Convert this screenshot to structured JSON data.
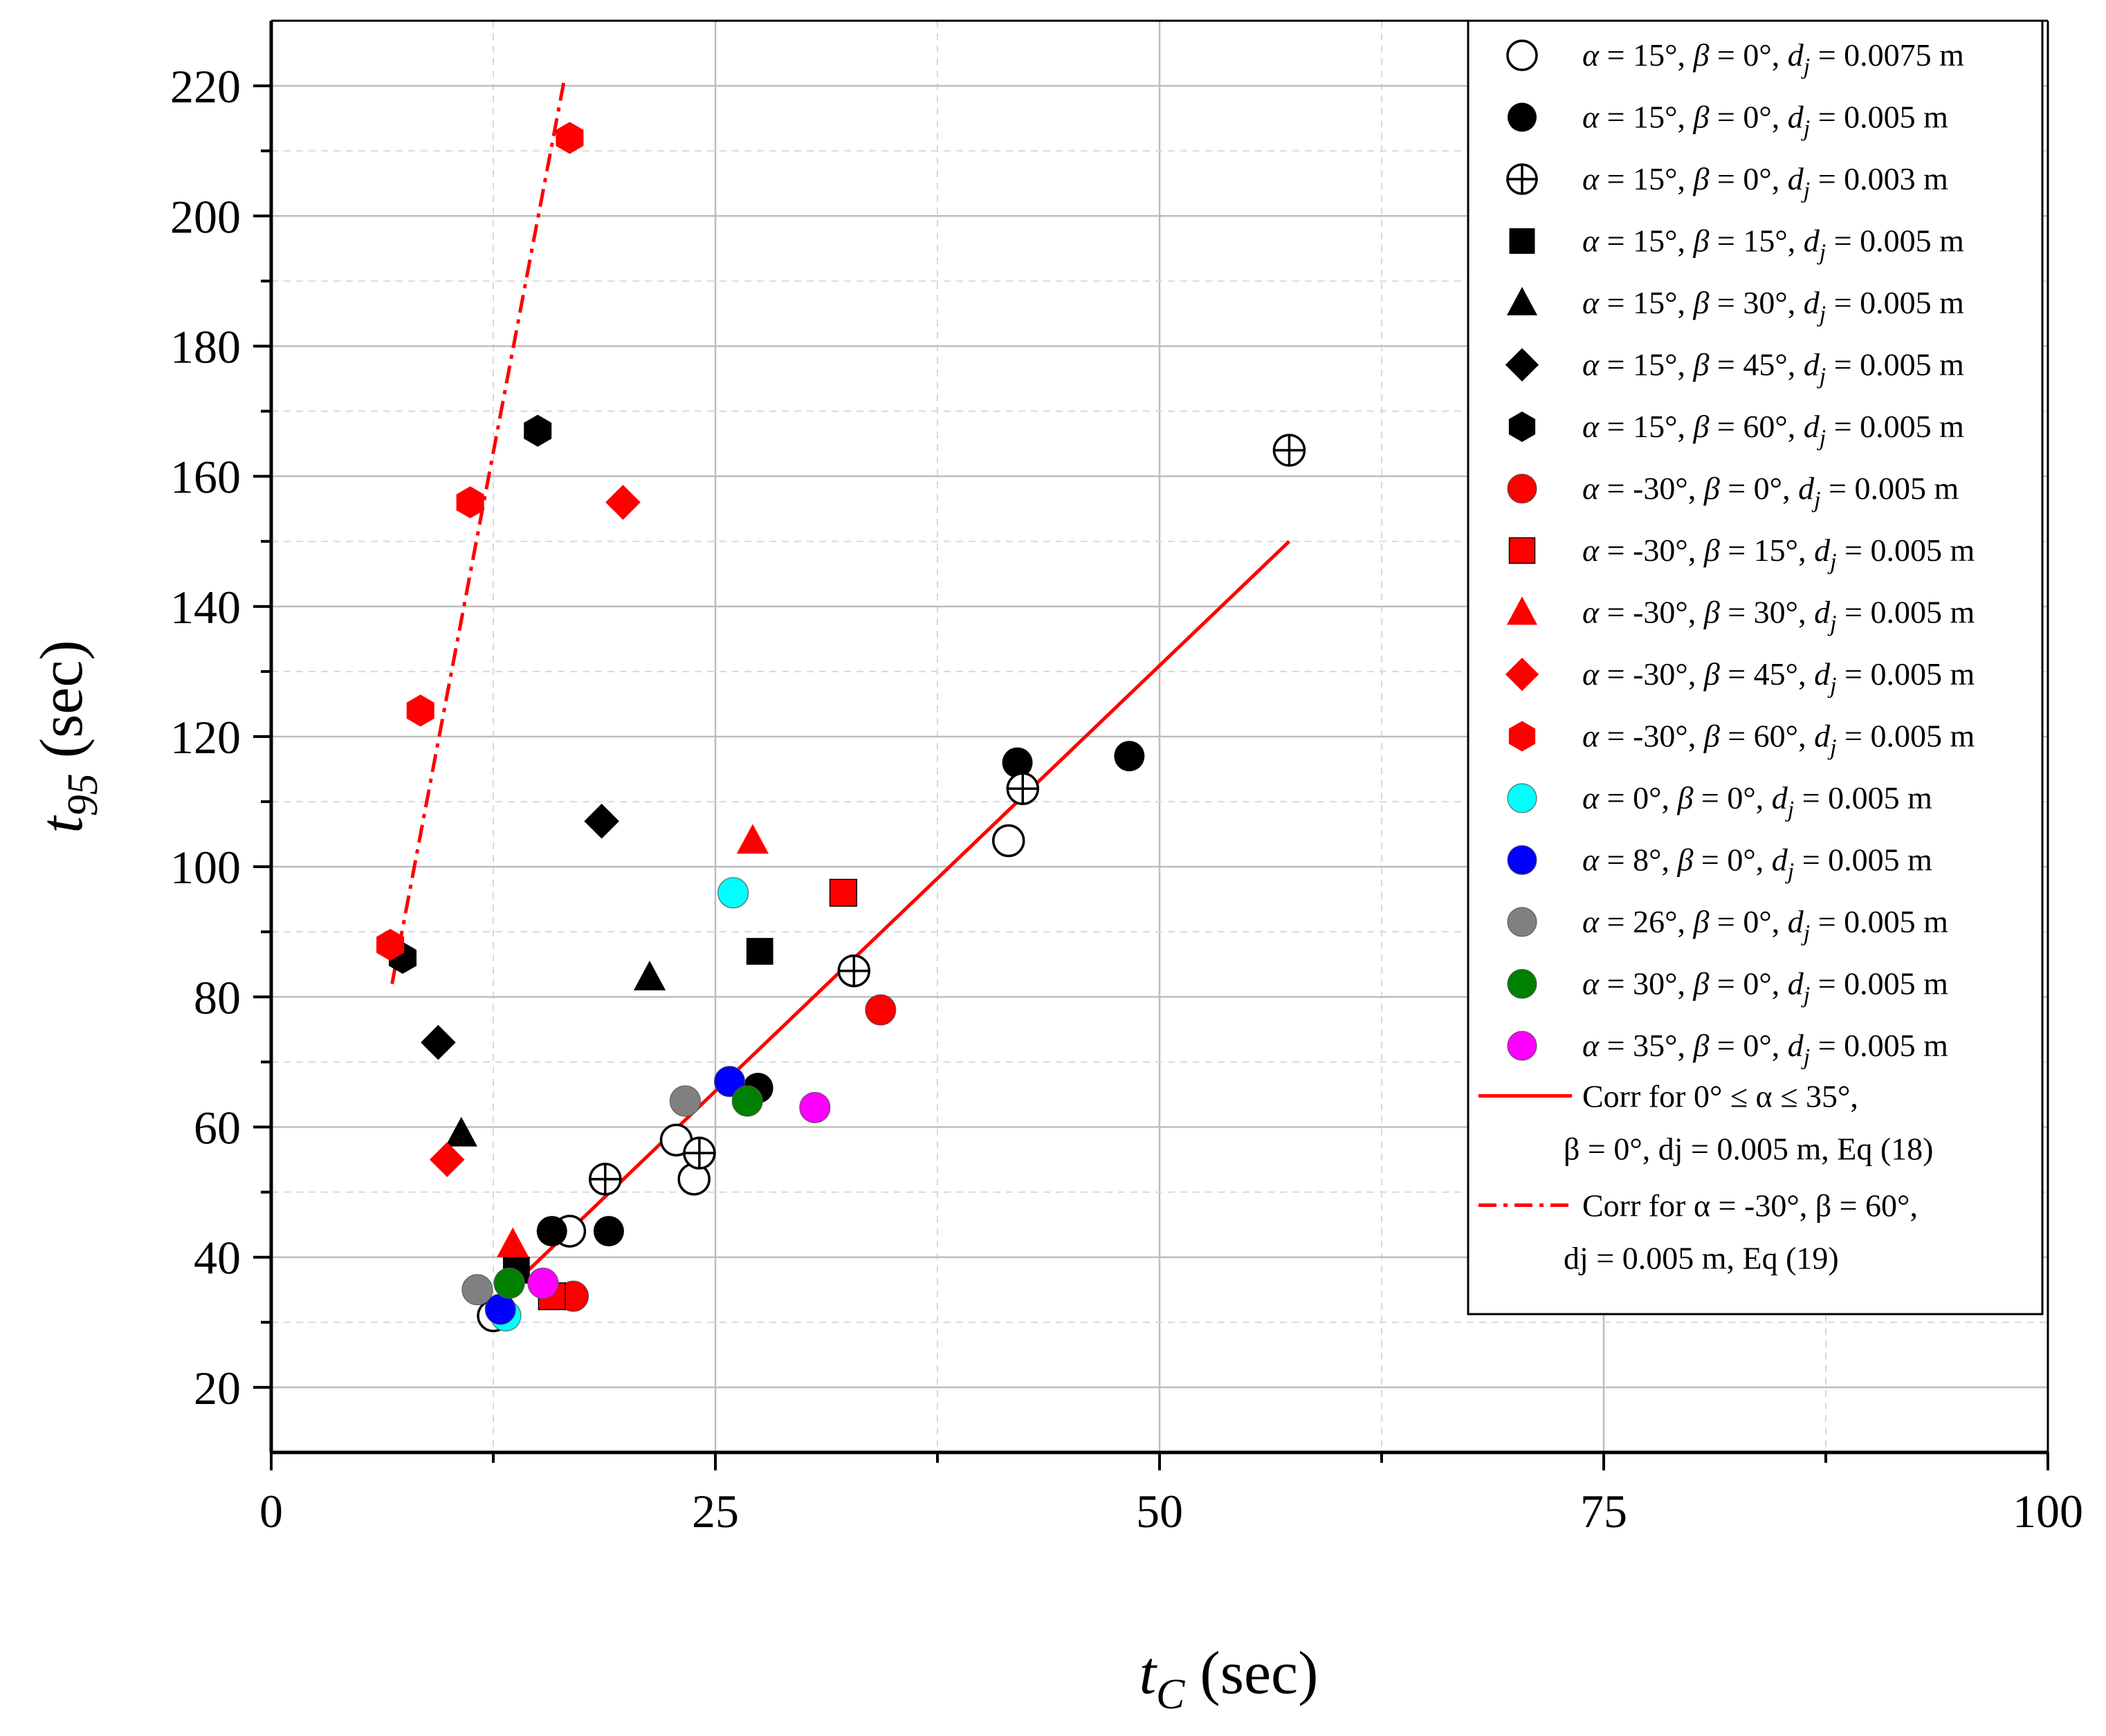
{
  "chart_data": {
    "type": "scatter",
    "title": "",
    "xlabel": "tC (sec)",
    "ylabel": "t95 (sec)",
    "xlabel_main": "t",
    "xlabel_sub": "C",
    "xlabel_unit": "(sec)",
    "ylabel_main": "t",
    "ylabel_sub": "95",
    "ylabel_unit": "(sec)",
    "xlim": [
      0,
      100
    ],
    "ylim": [
      10,
      230
    ],
    "x_ticks": [
      "0",
      "25",
      "50",
      "75",
      "100"
    ],
    "x_tick_values": [
      0,
      25,
      50,
      75,
      100
    ],
    "y_ticks": [
      "20",
      "40",
      "60",
      "80",
      "100",
      "120",
      "140",
      "160",
      "180",
      "200",
      "220"
    ],
    "y_tick_values": [
      20,
      40,
      60,
      80,
      100,
      120,
      140,
      160,
      180,
      200,
      220
    ],
    "grid": true,
    "legend_position": "top-right",
    "series": [
      {
        "name": "α = 15°, β = 0°, dj = 0.0075 m",
        "marker": "circle-open",
        "color": "#000000",
        "x": [
          12.5,
          16.8,
          22.8,
          23.8,
          41.5
        ],
        "y": [
          31,
          44,
          58,
          52,
          104
        ]
      },
      {
        "name": "α = 15°, β = 0°, dj = 0.005 m",
        "marker": "circle",
        "color": "#000000",
        "x": [
          15.8,
          19,
          27.4,
          42,
          48.3
        ],
        "y": [
          44,
          44,
          66,
          116,
          117
        ]
      },
      {
        "name": "α = 15°, β = 0°, dj = 0.003 m",
        "marker": "circle-plus",
        "color": "#000000",
        "x": [
          18.8,
          24.1,
          32.8,
          42.3,
          57.3
        ],
        "y": [
          52,
          56,
          84,
          112,
          164
        ]
      },
      {
        "name": "α = 15°, β = 15°, dj = 0.005 m",
        "marker": "square",
        "color": "#000000",
        "x": [
          13.8,
          27.5
        ],
        "y": [
          38,
          87
        ]
      },
      {
        "name": "α = 15°, β = 30°, dj = 0.005 m",
        "marker": "triangle",
        "color": "#000000",
        "x": [
          10.7,
          21.3
        ],
        "y": [
          59,
          83
        ]
      },
      {
        "name": "α = 15°, β = 45°, dj = 0.005 m",
        "marker": "diamond",
        "color": "#000000",
        "x": [
          9.4,
          18.6
        ],
        "y": [
          73,
          107
        ]
      },
      {
        "name": "α = 15°, β = 60°, dj = 0.005 m",
        "marker": "hexagon",
        "color": "#000000",
        "x": [
          7.4,
          15
        ],
        "y": [
          86,
          167
        ]
      },
      {
        "name": "α = -30°, β = 0°, dj = 0.005 m",
        "marker": "circle",
        "color": "#ff0000",
        "x": [
          17,
          34.3
        ],
        "y": [
          34,
          78
        ]
      },
      {
        "name": "α = -30°, β = 15°, dj = 0.005 m",
        "marker": "square",
        "color": "#ff0000",
        "x": [
          15.8,
          32.2
        ],
        "y": [
          34,
          96
        ]
      },
      {
        "name": "α = -30°, β = 30°, dj = 0.005 m",
        "marker": "triangle",
        "color": "#ff0000",
        "x": [
          13.6,
          27.1
        ],
        "y": [
          42,
          104
        ]
      },
      {
        "name": "α = -30°, β = 45°, dj = 0.005 m",
        "marker": "diamond",
        "color": "#ff0000",
        "x": [
          9.9,
          19.8
        ],
        "y": [
          55,
          156
        ]
      },
      {
        "name": "α = -30°, β = 60°, dj = 0.005 m",
        "marker": "hexagon",
        "color": "#ff0000",
        "x": [
          6.7,
          8.4,
          11.2,
          16.8
        ],
        "y": [
          88,
          124,
          156,
          212
        ]
      },
      {
        "name": "α = 0°, β = 0°, dj = 0.005 m",
        "marker": "circle",
        "color": "#00ffff",
        "x": [
          13.2,
          26
        ],
        "y": [
          31,
          96
        ]
      },
      {
        "name": "α = 8°, β = 0°, dj = 0.005 m",
        "marker": "circle",
        "color": "#0000ff",
        "x": [
          12.9,
          25.8
        ],
        "y": [
          32,
          67
        ]
      },
      {
        "name": "α = 26°, β = 0°, dj = 0.005 m",
        "marker": "circle",
        "color": "#808080",
        "x": [
          11.6,
          23.3
        ],
        "y": [
          35,
          64
        ]
      },
      {
        "name": "α = 30°, β = 0°, dj = 0.005 m",
        "marker": "circle",
        "color": "#008000",
        "x": [
          13.4,
          26.8
        ],
        "y": [
          36,
          64
        ]
      },
      {
        "name": "α = 35°, β = 0°, dj = 0.005 m",
        "marker": "circle",
        "color": "#ff00ff",
        "x": [
          15.3,
          30.6
        ],
        "y": [
          36,
          63
        ]
      }
    ],
    "fit_lines": [
      {
        "name": "Corr for 0° ≤ α ≤ 35°, β = 0°, dj = 0.005 m, Eq (18)",
        "style": "solid",
        "color": "#ff0000",
        "x": [
          11.8,
          57.3
        ],
        "y": [
          31,
          150
        ]
      },
      {
        "name": "Corr for α = -30°, β = 60°, dj = 0.005 m, Eq (19)",
        "style": "dashdot",
        "color": "#ff0000",
        "x": [
          6.8,
          16.5
        ],
        "y": [
          82,
          221
        ]
      }
    ],
    "legend": {
      "entries": [
        {
          "a": "15°",
          "b": "0°",
          "d": "0.0075 m",
          "marker": "circle-open",
          "color": "#000000"
        },
        {
          "a": "15°",
          "b": "0°",
          "d": "0.005 m",
          "marker": "circle",
          "color": "#000000"
        },
        {
          "a": "15°",
          "b": "0°",
          "d": "0.003 m",
          "marker": "circle-plus",
          "color": "#000000"
        },
        {
          "a": "15°",
          "b": "15°",
          "d": "0.005 m",
          "marker": "square",
          "color": "#000000"
        },
        {
          "a": "15°",
          "b": "30°",
          "d": "0.005 m",
          "marker": "triangle",
          "color": "#000000"
        },
        {
          "a": "15°",
          "b": "45°",
          "d": "0.005 m",
          "marker": "diamond",
          "color": "#000000"
        },
        {
          "a": "15°",
          "b": "60°",
          "d": "0.005 m",
          "marker": "hexagon",
          "color": "#000000"
        },
        {
          "a": "-30°",
          "b": "0°",
          "d": "0.005 m",
          "marker": "circle",
          "color": "#ff0000"
        },
        {
          "a": "-30°",
          "b": "15°",
          "d": "0.005 m",
          "marker": "square",
          "color": "#ff0000"
        },
        {
          "a": "-30°",
          "b": "30°",
          "d": "0.005 m",
          "marker": "triangle",
          "color": "#ff0000"
        },
        {
          "a": "-30°",
          "b": "45°",
          "d": "0.005 m",
          "marker": "diamond",
          "color": "#ff0000"
        },
        {
          "a": "-30°",
          "b": "60°",
          "d": "0.005 m",
          "marker": "hexagon",
          "color": "#ff0000"
        },
        {
          "a": "0°",
          "b": "0°",
          "d": "0.005 m",
          "marker": "circle",
          "color": "#00ffff"
        },
        {
          "a": "8°",
          "b": "0°",
          "d": "0.005 m",
          "marker": "circle",
          "color": "#0000ff"
        },
        {
          "a": "26°",
          "b": "0°",
          "d": "0.005 m",
          "marker": "circle",
          "color": "#808080"
        },
        {
          "a": "30°",
          "b": "0°",
          "d": "0.005 m",
          "marker": "circle",
          "color": "#008000"
        },
        {
          "a": "35°",
          "b": "0°",
          "d": "0.005 m",
          "marker": "circle",
          "color": "#ff00ff"
        }
      ],
      "corr1_line1": "Corr for 0° ≤ α ≤ 35°,",
      "corr1_line2": "β = 0°, dj = 0.005 m, Eq (18)",
      "corr2_line1": "Corr for α = -30°, β = 60°,",
      "corr2_line2": "dj = 0.005 m, Eq (19)"
    }
  }
}
